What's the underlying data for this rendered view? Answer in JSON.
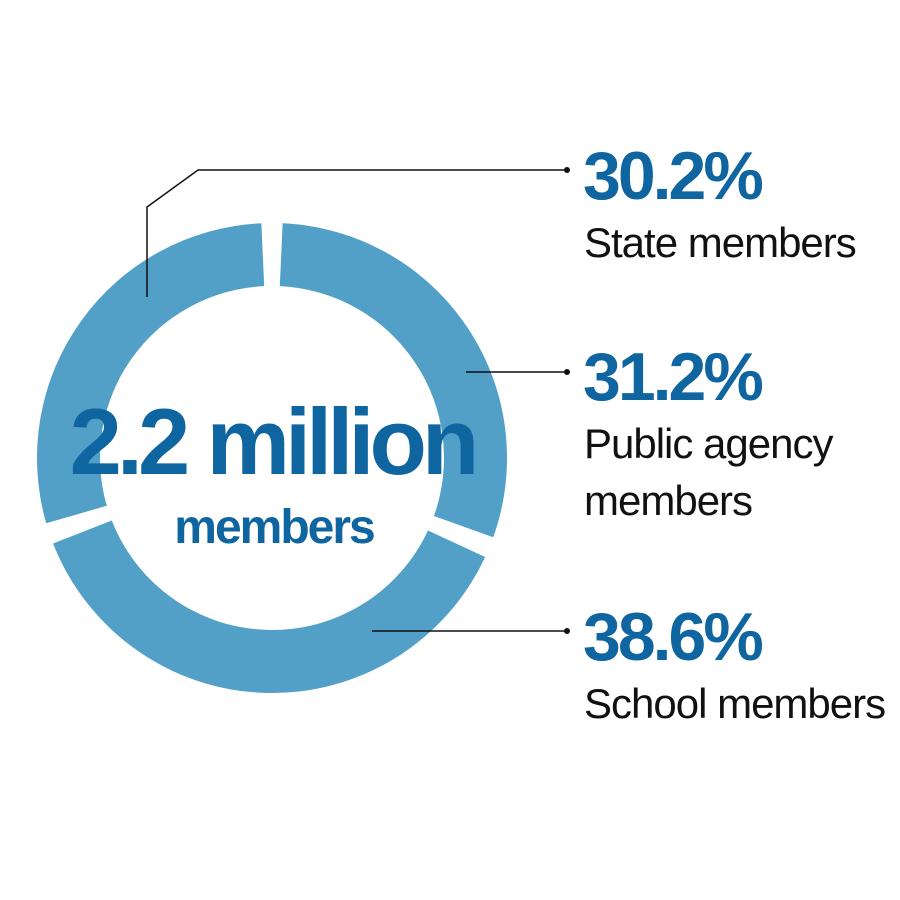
{
  "chart_data": {
    "type": "pie",
    "style": "donut",
    "center_text": {
      "value": "2.2 million",
      "label": "members"
    },
    "slices": [
      {
        "value": 30.2,
        "pct_label": "30.2%",
        "label_lines": [
          "State members"
        ]
      },
      {
        "value": 31.2,
        "pct_label": "31.2%",
        "label_lines": [
          "Public agency",
          "members"
        ]
      },
      {
        "value": 38.6,
        "pct_label": "38.6%",
        "label_lines": [
          "School members"
        ]
      }
    ],
    "colors": {
      "ring": "#529fc7",
      "accent_text": "#0f65a0",
      "label_text": "#111111"
    }
  }
}
